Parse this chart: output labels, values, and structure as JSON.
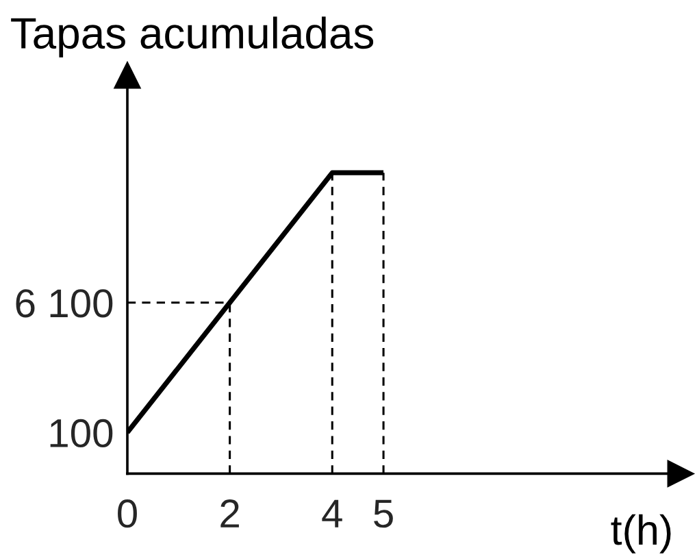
{
  "chart_data": {
    "type": "line",
    "ylabel": "Tapas acumuladas",
    "xlabel": "t(h)",
    "x": [
      0,
      2,
      4,
      5
    ],
    "series": [
      {
        "color": "#000000",
        "values": [
          100,
          6100,
          12100,
          12100
        ]
      }
    ],
    "xlim": [
      0,
      10.8
    ],
    "ylim": [
      -1800,
      16600
    ],
    "xticks": [
      0,
      2,
      4,
      5
    ],
    "yticks": [
      100,
      {
        "value": 6100,
        "label": "6 100"
      }
    ],
    "line_style": "solid",
    "ref_lines": [
      {
        "axis": "y",
        "value": 6100,
        "color": "#000000",
        "line_style": "dashed"
      },
      {
        "axis": "x",
        "value": 2,
        "color": "#000000",
        "line_style": "dashed"
      },
      {
        "axis": "x",
        "value": 4,
        "color": "#000000",
        "line_style": "dashed"
      },
      {
        "axis": "x",
        "value": 5,
        "color": "#000000",
        "line_style": "dashed"
      }
    ]
  }
}
